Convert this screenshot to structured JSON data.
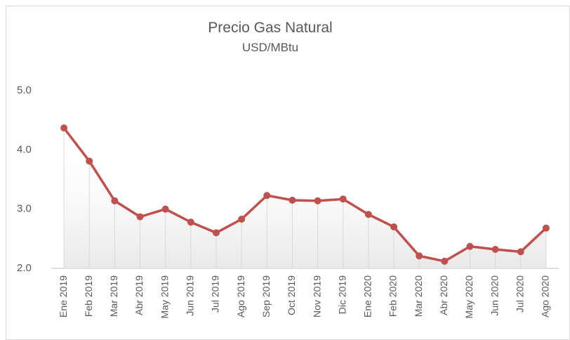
{
  "chart_data": {
    "type": "line",
    "title": "Precio Gas Natural",
    "subtitle": "USD/MBtu",
    "categories": [
      "Ene 2019",
      "Feb 2019",
      "Mar 2019",
      "Abr 2019",
      "May 2019",
      "Jun 2019",
      "Jul 2019",
      "Ago 2019",
      "Sep 2019",
      "Oct 2019",
      "Nov 2019",
      "Dic 2019",
      "Ene 2020",
      "Feb 2020",
      "Mar 2020",
      "Abr 2020",
      "May 2020",
      "Jun 2020",
      "Jul 2020",
      "Ago 2020"
    ],
    "values": [
      4.37,
      3.81,
      3.14,
      2.87,
      3.0,
      2.78,
      2.6,
      2.83,
      3.23,
      3.15,
      3.14,
      3.17,
      2.91,
      2.7,
      2.21,
      2.12,
      2.37,
      2.32,
      2.28,
      2.68
    ],
    "color": "#c0504d",
    "ylim": [
      2.0,
      5.0
    ],
    "yticks": [
      {
        "value": 2,
        "label": "2.0"
      },
      {
        "value": 3,
        "label": "3.0"
      },
      {
        "value": 4,
        "label": "4.0"
      },
      {
        "value": 5,
        "label": "5.0"
      }
    ],
    "drop_lines": true
  }
}
